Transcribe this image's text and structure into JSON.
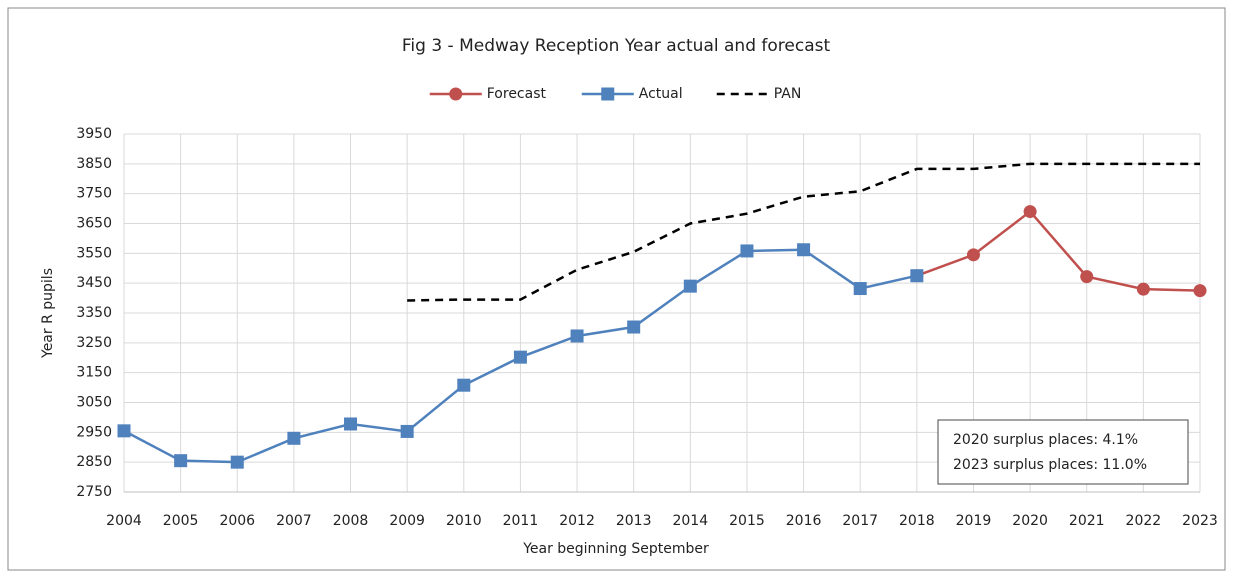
{
  "chart_data": {
    "type": "line",
    "title": "Fig 3 - Medway Reception Year actual and forecast",
    "x_label": "Year beginning September",
    "y_label": "Year R pupils",
    "x": [
      2004,
      2005,
      2006,
      2007,
      2008,
      2009,
      2010,
      2011,
      2012,
      2013,
      2014,
      2015,
      2016,
      2017,
      2018,
      2019,
      2020,
      2021,
      2022,
      2023
    ],
    "xlim": [
      2004,
      2023
    ],
    "xticks": [
      2004,
      2005,
      2006,
      2007,
      2008,
      2009,
      2010,
      2011,
      2012,
      2013,
      2014,
      2015,
      2016,
      2017,
      2018,
      2019,
      2020,
      2021,
      2022,
      2023
    ],
    "ylim": [
      2750,
      3950
    ],
    "yticks": [
      2750,
      2850,
      2950,
      3050,
      3150,
      3250,
      3350,
      3450,
      3550,
      3650,
      3750,
      3850,
      3950
    ],
    "grid": true,
    "legend": "top",
    "series": [
      {
        "name": "Forecast",
        "color": "#c0504d",
        "marker": "circle",
        "line_style": "solid",
        "values": [
          null,
          null,
          null,
          null,
          null,
          null,
          null,
          null,
          null,
          null,
          null,
          null,
          null,
          null,
          3475,
          3545,
          3690,
          3472,
          3430,
          3425
        ]
      },
      {
        "name": "Actual",
        "color": "#4f81bd",
        "marker": "square",
        "line_style": "solid",
        "values": [
          2955,
          2855,
          2850,
          2930,
          2978,
          2953,
          3108,
          3202,
          3273,
          3303,
          3440,
          3558,
          3562,
          3432,
          3475,
          null,
          null,
          null,
          null,
          null
        ]
      },
      {
        "name": "PAN",
        "color": "#000000",
        "marker": "none",
        "line_style": "dashed",
        "values": [
          null,
          null,
          null,
          null,
          null,
          3392,
          3395,
          3395,
          3495,
          3555,
          3650,
          3683,
          3740,
          3758,
          3833,
          3833,
          3850,
          3850,
          3850,
          3850
        ]
      }
    ],
    "annotations": [
      "2020 surplus places: 4.1%",
      "2023 surplus places: 11.0%"
    ]
  }
}
